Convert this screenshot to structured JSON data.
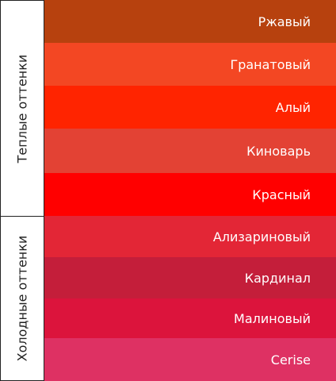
{
  "groups": [
    {
      "label": "Теплые оттенки"
    },
    {
      "label": "Холодные оттенки"
    }
  ],
  "swatches": [
    {
      "name": "Ржавый",
      "color": "#b7410e"
    },
    {
      "name": "Гранатовый",
      "color": "#f34723"
    },
    {
      "name": "Алый",
      "color": "#ff2400"
    },
    {
      "name": "Киноварь",
      "color": "#e34234"
    },
    {
      "name": "Красный",
      "color": "#ff0000"
    },
    {
      "name": "Ализариновый",
      "color": "#e32636"
    },
    {
      "name": "Кардинал",
      "color": "#c41e3a"
    },
    {
      "name": "Малиновый",
      "color": "#dc143c"
    },
    {
      "name": "Cerise",
      "color": "#de3163"
    }
  ]
}
